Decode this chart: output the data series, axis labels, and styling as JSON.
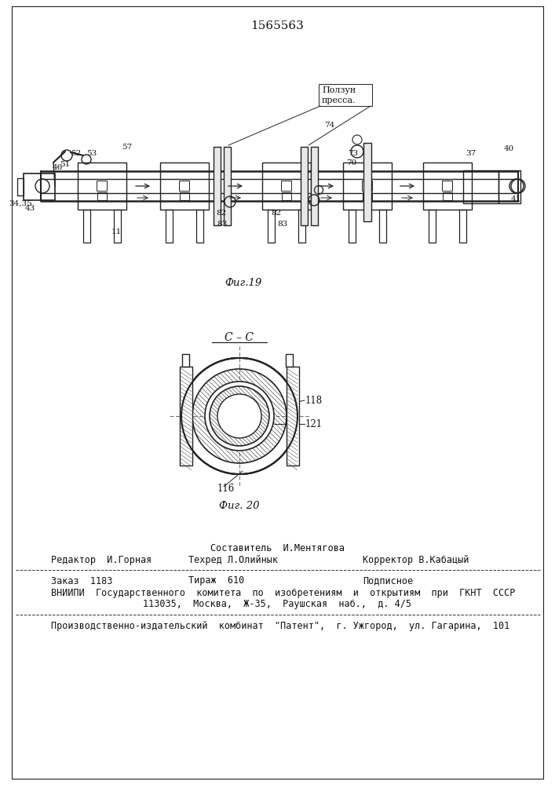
{
  "patent_number": "1565563",
  "fig19_caption": "Фиг.19",
  "fig20_caption": "Фиг. 20",
  "cc_label": "C – C",
  "polzun_line1": "Ползун",
  "polzun_line2": "пресса.",
  "footer_sestavitel": "Составитель  И.Ментягова",
  "footer_redaktor": "Редактор  И.Горная",
  "footer_tekhred": "Техред Л.Олийнык",
  "footer_korrektor": "Корректор В.Кабацый",
  "footer_zakaz": "Заказ  1183",
  "footer_tirazh": "Тираж  610",
  "footer_podpisnoe": "Подписное",
  "footer_vniipи_1": "ВНИИПИ  Государственного  комитета  по  изобретениям  и  открытиям  при  ГКНТ  СССР",
  "footer_vniipи_2": "113035,  Москва,  Ж-35,  Раушская  наб.,  д. 4/5",
  "footer_kombinat": "Производственно-издательский  комбинат  \"Патент\",  г. Ужгород,  ул. Гагарина,  101"
}
